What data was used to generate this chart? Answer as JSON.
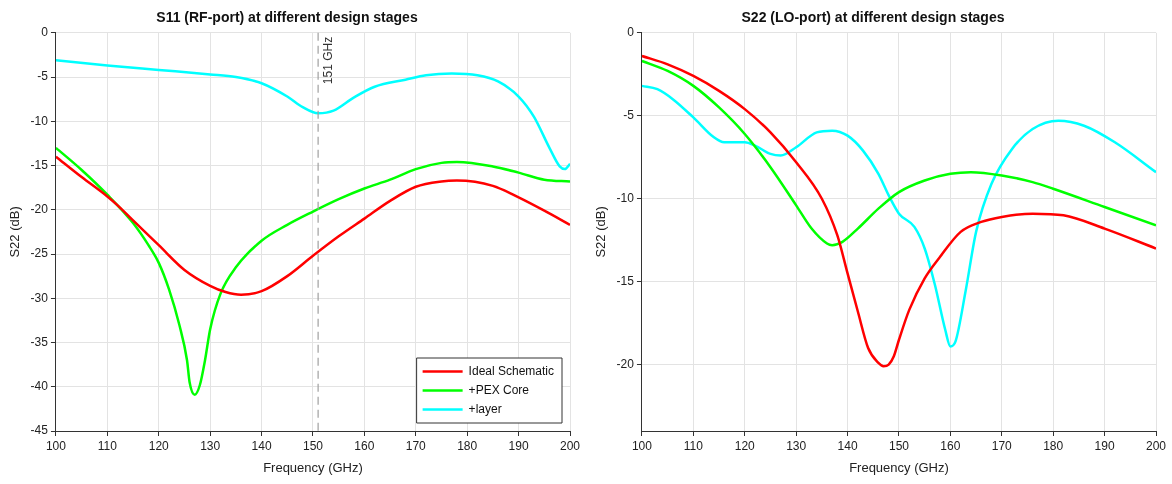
{
  "chart_data": [
    {
      "type": "line",
      "title": "S11 (RF-port) at different design stages",
      "xlabel": "Frequency (GHz)",
      "ylabel": "S22 (dB)",
      "xlim": [
        100,
        200
      ],
      "xticks": [
        100,
        110,
        120,
        130,
        140,
        150,
        160,
        170,
        180,
        190,
        200
      ],
      "ylim": [
        -45,
        0
      ],
      "yticks": [
        -45,
        -40,
        -35,
        -30,
        -25,
        -20,
        -15,
        -10,
        -5,
        0
      ],
      "grid": true,
      "legend": "bottom right",
      "marker": "none",
      "line_style": "solid",
      "ref_lines": [
        {
          "axis": "x",
          "value": 151,
          "label": "151 GHz",
          "color": "#a0a0a0",
          "line_style": "dashed"
        }
      ],
      "series": [
        {
          "name": "Ideal Schematic",
          "color": "#ff0000",
          "x": [
            100,
            105,
            110,
            112,
            115,
            120,
            125,
            130,
            133,
            136,
            140,
            145,
            150,
            155,
            160,
            165,
            170,
            175,
            178,
            185,
            190,
            195,
            200
          ],
          "values": [
            -14,
            -16.3,
            -18.5,
            -19.5,
            -21.2,
            -24,
            -26.8,
            -28.6,
            -29.3,
            -29.6,
            -29.2,
            -27.5,
            -25.2,
            -23,
            -21,
            -19,
            -17.4,
            -16.8,
            -16.7,
            -17.3,
            -18.6,
            -20.1,
            -21.7
          ]
        },
        {
          "name": "+PEX Core",
          "color": "#00ff00",
          "x": [
            100,
            105,
            110,
            115,
            118,
            120,
            122,
            124,
            125.5,
            126,
            127,
            128,
            129,
            130,
            132,
            135,
            140,
            145,
            150,
            155,
            160,
            165,
            170,
            175,
            178,
            185,
            190,
            195,
            200
          ],
          "values": [
            -13,
            -15.5,
            -18.3,
            -21.5,
            -24,
            -26,
            -29,
            -33,
            -37,
            -39.5,
            -40.9,
            -39.8,
            -37,
            -33.5,
            -29.5,
            -26.5,
            -23.5,
            -21.7,
            -20.2,
            -18.8,
            -17.6,
            -16.6,
            -15.4,
            -14.7,
            -14.6,
            -15.1,
            -15.8,
            -16.6,
            -16.8
          ]
        },
        {
          "name": "+layer",
          "color": "#00ffff",
          "x": [
            100,
            110,
            120,
            130,
            135,
            140,
            145,
            148,
            151,
            154,
            158,
            162,
            168,
            172,
            177,
            182,
            186,
            190,
            193,
            196,
            198,
            199,
            200
          ],
          "values": [
            -3.1,
            -3.7,
            -4.2,
            -4.7,
            -5,
            -5.7,
            -7.2,
            -8.4,
            -9.1,
            -8.8,
            -7.3,
            -6.1,
            -5.3,
            -4.8,
            -4.6,
            -4.8,
            -5.5,
            -7.2,
            -9.5,
            -13,
            -15.1,
            -15.4,
            -14.8
          ]
        }
      ]
    },
    {
      "type": "line",
      "title": "S22 (LO-port) at different design stages",
      "xlabel": "Frequency (GHz)",
      "ylabel": "S22 (dB)",
      "xlim": [
        100,
        200
      ],
      "xticks": [
        100,
        110,
        120,
        130,
        140,
        150,
        160,
        170,
        180,
        190,
        200
      ],
      "ylim": [
        -24,
        0
      ],
      "yticks": [
        -20,
        -15,
        -10,
        -5,
        0
      ],
      "grid": true,
      "marker": "none",
      "line_style": "solid",
      "series": [
        {
          "color": "#ff0000",
          "x": [
            100,
            105,
            110,
            115,
            120,
            125,
            130,
            135,
            138,
            140,
            142,
            144,
            146,
            147,
            148,
            149,
            150,
            152,
            155,
            158,
            162,
            166,
            170,
            176,
            182,
            190,
            200
          ],
          "values": [
            -1.4,
            -1.9,
            -2.6,
            -3.5,
            -4.6,
            -6,
            -7.8,
            -10,
            -12.2,
            -14.5,
            -16.8,
            -19,
            -19.9,
            -20.1,
            -20,
            -19.5,
            -18.5,
            -16.7,
            -14.8,
            -13.5,
            -12,
            -11.4,
            -11.1,
            -10.9,
            -11,
            -11.8,
            -13
          ]
        },
        {
          "color": "#00ff00",
          "x": [
            100,
            105,
            110,
            115,
            120,
            125,
            130,
            133,
            136,
            137,
            139,
            142,
            146,
            150,
            155,
            160,
            164,
            170,
            176,
            180,
            190,
            200
          ],
          "values": [
            -1.7,
            -2.3,
            -3.2,
            -4.5,
            -6.1,
            -8.1,
            -10.4,
            -11.8,
            -12.7,
            -12.8,
            -12.6,
            -11.8,
            -10.6,
            -9.6,
            -8.9,
            -8.5,
            -8.4,
            -8.6,
            -9,
            -9.4,
            -10.5,
            -11.6
          ]
        },
        {
          "color": "#00ffff",
          "x": [
            100,
            103,
            106,
            110,
            114,
            116,
            120,
            122,
            125,
            127,
            130,
            134,
            137,
            140,
            143,
            146,
            148,
            150,
            153,
            155,
            157,
            159,
            160,
            161,
            163,
            165,
            168,
            172,
            176,
            181,
            186,
            192,
            200
          ],
          "values": [
            -3.2,
            -3.4,
            -4,
            -5.1,
            -6.3,
            -6.6,
            -6.6,
            -6.8,
            -7.3,
            -7.4,
            -6.9,
            -6,
            -5.9,
            -6.2,
            -7.1,
            -8.5,
            -9.8,
            -10.9,
            -11.7,
            -13,
            -15.2,
            -17.9,
            -18.9,
            -18.6,
            -15.5,
            -12,
            -9.1,
            -7,
            -5.8,
            -5.3,
            -5.6,
            -6.6,
            -8.4
          ]
        }
      ]
    }
  ]
}
